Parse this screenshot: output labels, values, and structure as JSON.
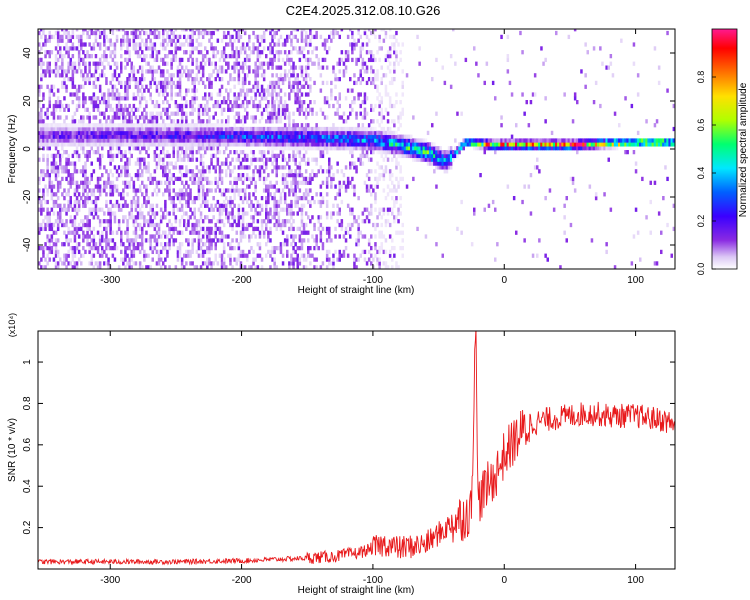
{
  "title": "C2E4.2025.312.08.10.G26",
  "chart_data": [
    {
      "type": "heatmap",
      "xlabel": "Height of straight line (km)",
      "ylabel": "Frequency (Hz)",
      "xlim": [
        -355,
        130
      ],
      "ylim": [
        -50,
        50
      ],
      "x_ticks": [
        -300,
        -200,
        -100,
        0,
        100
      ],
      "y_ticks": [
        -40,
        -20,
        0,
        20,
        40
      ],
      "colorbar": {
        "label": "Normalized spectral amplitude",
        "range": [
          0,
          1
        ],
        "ticks": [
          "0.0",
          "0.2",
          "0.4",
          "0.6",
          "0.8"
        ],
        "colors": [
          "#ffffff",
          "#dcc8f5",
          "#8a2be2",
          "#3a00ff",
          "#0060ff",
          "#00e8ff",
          "#00ff70",
          "#b0ff00",
          "#ffe000",
          "#ff7000",
          "#ff0000",
          "#ff1a90"
        ]
      },
      "trace": {
        "x": [
          -355,
          -250,
          -150,
          -100,
          -80,
          -60,
          -45,
          -30,
          -10,
          0,
          50,
          100,
          130
        ],
        "frequency": [
          5,
          5,
          4,
          3,
          1,
          -2,
          -6,
          2,
          1,
          1,
          1,
          2,
          2
        ],
        "peak_amplitude": [
          0.25,
          0.3,
          0.4,
          0.45,
          0.55,
          0.6,
          0.45,
          0.7,
          0.85,
          0.9,
          0.95,
          0.85,
          0.8
        ]
      }
    },
    {
      "type": "line",
      "xlabel": "Height of straight line (km)",
      "ylabel": "SNR (10 * v/v)",
      "y_multiplier": "(x10⁴)",
      "xlim": [
        -355,
        130
      ],
      "ylim": [
        0,
        1.15
      ],
      "x_ticks": [
        -300,
        -200,
        -100,
        0,
        100
      ],
      "y_ticks": [
        0.2,
        0.4,
        0.6,
        0.8,
        1
      ],
      "series": [
        {
          "color": "#e8191b",
          "x": [
            -355,
            -300,
            -250,
            -200,
            -160,
            -130,
            -110,
            -100,
            -90,
            -80,
            -70,
            -60,
            -50,
            -40,
            -30,
            -25,
            -22,
            -20,
            -15,
            -10,
            -5,
            0,
            10,
            20,
            30,
            40,
            50,
            60,
            70,
            80,
            90,
            100,
            110,
            120,
            130
          ],
          "y": [
            0.035,
            0.035,
            0.035,
            0.04,
            0.05,
            0.06,
            0.08,
            0.1,
            0.12,
            0.1,
            0.11,
            0.12,
            0.17,
            0.22,
            0.26,
            0.28,
            1.15,
            0.33,
            0.38,
            0.42,
            0.48,
            0.55,
            0.64,
            0.7,
            0.72,
            0.73,
            0.74,
            0.75,
            0.75,
            0.74,
            0.74,
            0.74,
            0.73,
            0.72,
            0.7
          ]
        }
      ]
    }
  ]
}
